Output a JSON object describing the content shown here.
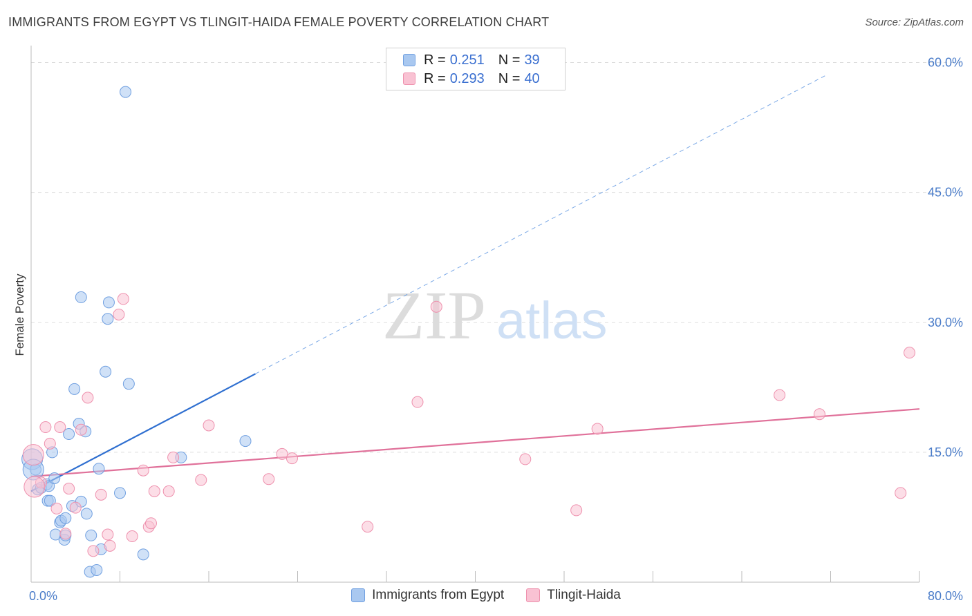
{
  "title": "IMMIGRANTS FROM EGYPT VS TLINGIT-HAIDA FEMALE POVERTY CORRELATION CHART",
  "source": "Source: ZipAtlas.com",
  "watermark": {
    "zip": "ZIP",
    "atlas": "atlas"
  },
  "legend": {
    "rows": [
      {
        "r_label": "R =",
        "r_value": "0.251",
        "n_label": "N =",
        "n_value": "39",
        "color": "#a9c8f0",
        "border": "#6f9fe0"
      },
      {
        "r_label": "R =",
        "r_value": "0.293",
        "n_label": "N =",
        "n_value": "40",
        "color": "#f9c2d3",
        "border": "#ee90ad"
      }
    ]
  },
  "bottom_legend": [
    {
      "label": "Immigrants from Egypt",
      "color": "#a9c8f0",
      "border": "#6f9fe0"
    },
    {
      "label": "Tlingit-Haida",
      "color": "#f9c2d3",
      "border": "#ee90ad"
    }
  ],
  "chart_data": {
    "type": "scatter",
    "title": "IMMIGRANTS FROM EGYPT VS TLINGIT-HAIDA FEMALE POVERTY CORRELATION CHART",
    "xlabel": "",
    "ylabel": "Female Poverty",
    "xlim": [
      0,
      80
    ],
    "ylim": [
      0,
      61
    ],
    "x_tick_labels": [
      "0.0%",
      "80.0%"
    ],
    "y_ticks": [
      15,
      30,
      45,
      60
    ],
    "y_tick_labels": [
      "15.0%",
      "30.0%",
      "45.0%",
      "60.0%"
    ],
    "grid": true,
    "series": [
      {
        "name": "Immigrants from Egypt",
        "color": "#6f9fe0",
        "fill": "#a9c8f0",
        "points": [
          [
            0.1,
            14.2
          ],
          [
            0.4,
            13.0
          ],
          [
            0.6,
            10.7
          ],
          [
            0.9,
            10.9
          ],
          [
            1.4,
            11.3
          ],
          [
            1.5,
            9.4
          ],
          [
            1.6,
            11.1
          ],
          [
            1.7,
            9.4
          ],
          [
            1.9,
            15.0
          ],
          [
            2.1,
            12.0
          ],
          [
            2.2,
            5.5
          ],
          [
            2.6,
            6.9
          ],
          [
            2.7,
            7.1
          ],
          [
            3.0,
            4.9
          ],
          [
            3.1,
            5.4
          ],
          [
            3.1,
            7.4
          ],
          [
            3.4,
            17.1
          ],
          [
            3.7,
            8.8
          ],
          [
            3.9,
            22.3
          ],
          [
            4.3,
            18.3
          ],
          [
            4.5,
            9.3
          ],
          [
            4.5,
            32.9
          ],
          [
            4.9,
            17.4
          ],
          [
            5.0,
            7.9
          ],
          [
            5.3,
            1.2
          ],
          [
            5.4,
            5.4
          ],
          [
            5.9,
            1.4
          ],
          [
            6.1,
            13.1
          ],
          [
            6.3,
            3.8
          ],
          [
            6.7,
            24.3
          ],
          [
            6.9,
            30.4
          ],
          [
            7.0,
            32.3
          ],
          [
            8.0,
            10.3
          ],
          [
            8.5,
            56.6
          ],
          [
            8.8,
            22.9
          ],
          [
            10.1,
            3.2
          ],
          [
            13.5,
            14.4
          ],
          [
            19.3,
            16.3
          ],
          [
            0.2,
            13.0
          ]
        ]
      },
      {
        "name": "Tlingit-Haida",
        "color": "#ee90ad",
        "fill": "#f9c2d3",
        "points": [
          [
            0.2,
            14.7
          ],
          [
            0.9,
            11.5
          ],
          [
            1.3,
            17.9
          ],
          [
            1.7,
            16.0
          ],
          [
            2.3,
            8.5
          ],
          [
            2.6,
            17.9
          ],
          [
            3.1,
            5.6
          ],
          [
            3.4,
            10.8
          ],
          [
            4.0,
            8.6
          ],
          [
            4.5,
            17.6
          ],
          [
            5.1,
            21.3
          ],
          [
            5.6,
            3.6
          ],
          [
            6.3,
            10.1
          ],
          [
            6.9,
            5.5
          ],
          [
            7.1,
            4.2
          ],
          [
            7.9,
            30.9
          ],
          [
            8.3,
            32.7
          ],
          [
            9.1,
            5.3
          ],
          [
            10.1,
            12.9
          ],
          [
            10.6,
            6.4
          ],
          [
            10.8,
            6.8
          ],
          [
            11.1,
            10.5
          ],
          [
            12.4,
            10.5
          ],
          [
            12.8,
            14.4
          ],
          [
            15.3,
            11.8
          ],
          [
            16.0,
            18.1
          ],
          [
            21.4,
            11.9
          ],
          [
            22.6,
            14.8
          ],
          [
            23.5,
            14.3
          ],
          [
            30.3,
            6.4
          ],
          [
            34.8,
            20.8
          ],
          [
            36.5,
            31.8
          ],
          [
            44.5,
            14.2
          ],
          [
            49.1,
            8.3
          ],
          [
            51.0,
            17.7
          ],
          [
            67.4,
            21.6
          ],
          [
            71.0,
            19.4
          ],
          [
            78.3,
            10.3
          ],
          [
            79.1,
            26.5
          ],
          [
            0.3,
            11.0
          ]
        ]
      }
    ],
    "trendlines": [
      {
        "series": "Immigrants from Egypt",
        "x_start": 0,
        "y_start": 10.5,
        "x_solid_end": 20.2,
        "x_dashed_end": 71.5,
        "slope": 0.671
      },
      {
        "series": "Tlingit-Haida",
        "x_start": 0,
        "y_start": 12.2,
        "x_end": 80,
        "y_end": 20.0
      }
    ]
  }
}
